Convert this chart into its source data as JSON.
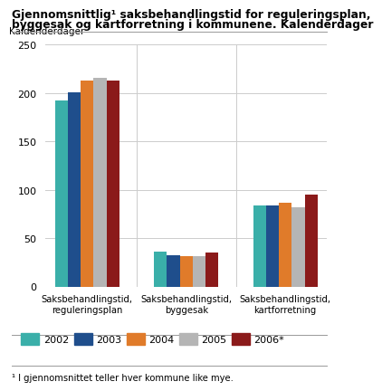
{
  "title_line1": "Gjennomsnittlig¹ saksbehandlingstid for reguleringsplan,",
  "title_line2": "byggesak og kartforretning i kommunene. Kalenderdager",
  "ylabel": "Kaldenderdager",
  "ylim": [
    0,
    250
  ],
  "yticks": [
    0,
    50,
    100,
    150,
    200,
    250
  ],
  "categories": [
    "Saksbehandlingstid,\nreguleringsplan",
    "Saksbehandlingstid,\nbyggesak",
    "Saksbehandlingstid,\nkartforretning"
  ],
  "years": [
    "2002",
    "2003",
    "2004",
    "2005",
    "2006*"
  ],
  "colors": [
    "#3aafa9",
    "#1f4e8c",
    "#e07b2a",
    "#b5b5b5",
    "#8b1a1a"
  ],
  "values": {
    "reguleringsplan": [
      192,
      201,
      213,
      216,
      213
    ],
    "byggesak": [
      36,
      32,
      31,
      31,
      35
    ],
    "kartforretning": [
      84,
      84,
      87,
      82,
      95
    ]
  },
  "footnote": "¹ I gjennomsnittet teller hver kommune like mye.",
  "background_color": "#ffffff",
  "grid_color": "#cccccc"
}
